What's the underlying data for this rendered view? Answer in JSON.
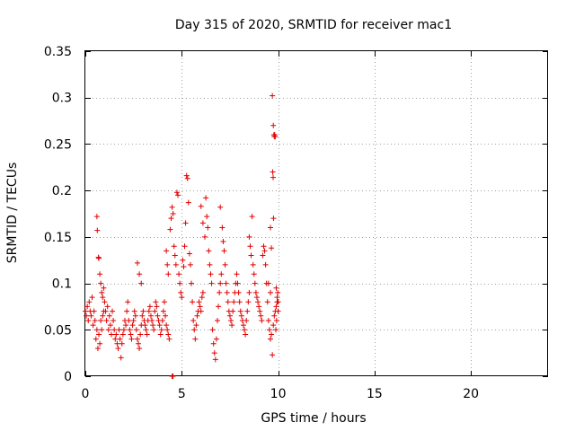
{
  "chart_data": {
    "type": "scatter",
    "title": "Day 315 of 2020, SRMTID for receiver mac1",
    "xlabel": "GPS time / hours",
    "ylabel": "SRMTID / TECUs",
    "xlim": [
      0,
      24
    ],
    "ylim": [
      0,
      0.35
    ],
    "xticks": [
      0,
      5,
      10,
      15,
      20
    ],
    "xtick_labels": [
      "0",
      "5",
      "10",
      "15",
      "20"
    ],
    "yticks": [
      0,
      0.05,
      0.1,
      0.15,
      0.2,
      0.25,
      0.3,
      0.35
    ],
    "ytick_labels": [
      "0",
      "0.05",
      "0.1",
      "0.15",
      "0.2",
      "0.25",
      "0.3",
      "0.35"
    ],
    "grid": true,
    "marker": "+",
    "color": "#e00000",
    "series": [
      {
        "name": "SRMTID",
        "points": [
          [
            0.0,
            0.07
          ],
          [
            0.05,
            0.065
          ],
          [
            0.1,
            0.075
          ],
          [
            0.15,
            0.06
          ],
          [
            0.2,
            0.08
          ],
          [
            0.25,
            0.07
          ],
          [
            0.3,
            0.065
          ],
          [
            0.35,
            0.085
          ],
          [
            0.4,
            0.055
          ],
          [
            0.45,
            0.07
          ],
          [
            0.5,
            0.06
          ],
          [
            0.55,
            0.04
          ],
          [
            0.6,
            0.05
          ],
          [
            0.65,
            0.03
          ],
          [
            0.7,
            0.045
          ],
          [
            0.75,
            0.035
          ],
          [
            0.8,
            0.06
          ],
          [
            0.85,
            0.05
          ],
          [
            0.9,
            0.065
          ],
          [
            0.95,
            0.07
          ],
          [
            0.6,
            0.172
          ],
          [
            0.62,
            0.157
          ],
          [
            0.68,
            0.128
          ],
          [
            0.7,
            0.127
          ],
          [
            0.75,
            0.11
          ],
          [
            0.8,
            0.1
          ],
          [
            0.85,
            0.09
          ],
          [
            0.9,
            0.085
          ],
          [
            0.95,
            0.095
          ],
          [
            1.0,
            0.08
          ],
          [
            1.05,
            0.07
          ],
          [
            1.1,
            0.06
          ],
          [
            1.15,
            0.075
          ],
          [
            1.2,
            0.05
          ],
          [
            1.25,
            0.065
          ],
          [
            1.3,
            0.055
          ],
          [
            1.35,
            0.045
          ],
          [
            1.4,
            0.07
          ],
          [
            1.45,
            0.06
          ],
          [
            1.5,
            0.05
          ],
          [
            1.55,
            0.04
          ],
          [
            1.6,
            0.045
          ],
          [
            1.65,
            0.035
          ],
          [
            1.7,
            0.03
          ],
          [
            1.75,
            0.05
          ],
          [
            1.8,
            0.04
          ],
          [
            1.85,
            0.02
          ],
          [
            1.9,
            0.035
          ],
          [
            1.95,
            0.045
          ],
          [
            2.0,
            0.05
          ],
          [
            2.05,
            0.06
          ],
          [
            2.1,
            0.055
          ],
          [
            2.15,
            0.07
          ],
          [
            2.2,
            0.08
          ],
          [
            2.25,
            0.06
          ],
          [
            2.3,
            0.05
          ],
          [
            2.35,
            0.045
          ],
          [
            2.4,
            0.04
          ],
          [
            2.45,
            0.055
          ],
          [
            2.5,
            0.06
          ],
          [
            2.55,
            0.07
          ],
          [
            2.6,
            0.065
          ],
          [
            2.65,
            0.05
          ],
          [
            2.7,
            0.04
          ],
          [
            2.75,
            0.035
          ],
          [
            2.8,
            0.03
          ],
          [
            2.85,
            0.045
          ],
          [
            2.9,
            0.055
          ],
          [
            2.95,
            0.065
          ],
          [
            3.0,
            0.07
          ],
          [
            2.7,
            0.122
          ],
          [
            2.8,
            0.11
          ],
          [
            2.9,
            0.1
          ],
          [
            3.05,
            0.06
          ],
          [
            3.1,
            0.055
          ],
          [
            3.15,
            0.05
          ],
          [
            3.2,
            0.045
          ],
          [
            3.25,
            0.06
          ],
          [
            3.3,
            0.07
          ],
          [
            3.35,
            0.075
          ],
          [
            3.4,
            0.065
          ],
          [
            3.45,
            0.06
          ],
          [
            3.5,
            0.055
          ],
          [
            3.55,
            0.05
          ],
          [
            3.6,
            0.07
          ],
          [
            3.65,
            0.08
          ],
          [
            3.7,
            0.075
          ],
          [
            3.75,
            0.065
          ],
          [
            3.8,
            0.06
          ],
          [
            3.85,
            0.055
          ],
          [
            3.9,
            0.045
          ],
          [
            3.95,
            0.05
          ],
          [
            4.0,
            0.06
          ],
          [
            4.05,
            0.07
          ],
          [
            4.1,
            0.08
          ],
          [
            4.15,
            0.065
          ],
          [
            4.2,
            0.055
          ],
          [
            4.25,
            0.05
          ],
          [
            4.3,
            0.045
          ],
          [
            4.35,
            0.04
          ],
          [
            4.2,
            0.135
          ],
          [
            4.25,
            0.12
          ],
          [
            4.3,
            0.11
          ],
          [
            4.4,
            0.158
          ],
          [
            4.45,
            0.17
          ],
          [
            4.5,
            0.182
          ],
          [
            4.55,
            0.175
          ],
          [
            4.6,
            0.14
          ],
          [
            4.65,
            0.13
          ],
          [
            4.7,
            0.12
          ],
          [
            4.5,
            0.0
          ],
          [
            4.55,
            0.0
          ],
          [
            4.75,
            0.198
          ],
          [
            4.8,
            0.195
          ],
          [
            4.85,
            0.11
          ],
          [
            4.9,
            0.1
          ],
          [
            4.95,
            0.09
          ],
          [
            5.0,
            0.085
          ],
          [
            5.05,
            0.125
          ],
          [
            5.1,
            0.118
          ],
          [
            5.15,
            0.14
          ],
          [
            5.2,
            0.165
          ],
          [
            5.25,
            0.216
          ],
          [
            5.3,
            0.213
          ],
          [
            5.35,
            0.187
          ],
          [
            5.4,
            0.132
          ],
          [
            5.45,
            0.12
          ],
          [
            5.5,
            0.1
          ],
          [
            5.55,
            0.08
          ],
          [
            5.6,
            0.06
          ],
          [
            5.65,
            0.05
          ],
          [
            5.7,
            0.04
          ],
          [
            5.75,
            0.055
          ],
          [
            5.8,
            0.065
          ],
          [
            5.85,
            0.07
          ],
          [
            5.9,
            0.08
          ],
          [
            5.95,
            0.075
          ],
          [
            6.0,
            0.07
          ],
          [
            6.05,
            0.085
          ],
          [
            6.1,
            0.09
          ],
          [
            6.0,
            0.183
          ],
          [
            6.1,
            0.165
          ],
          [
            6.2,
            0.15
          ],
          [
            6.25,
            0.192
          ],
          [
            6.3,
            0.172
          ],
          [
            6.35,
            0.16
          ],
          [
            6.4,
            0.135
          ],
          [
            6.45,
            0.12
          ],
          [
            6.5,
            0.11
          ],
          [
            6.55,
            0.1
          ],
          [
            6.6,
            0.05
          ],
          [
            6.65,
            0.035
          ],
          [
            6.7,
            0.025
          ],
          [
            6.75,
            0.018
          ],
          [
            6.8,
            0.04
          ],
          [
            6.85,
            0.06
          ],
          [
            6.9,
            0.075
          ],
          [
            6.95,
            0.09
          ],
          [
            7.0,
            0.1
          ],
          [
            7.05,
            0.11
          ],
          [
            7.0,
            0.182
          ],
          [
            7.1,
            0.16
          ],
          [
            7.15,
            0.145
          ],
          [
            7.2,
            0.135
          ],
          [
            7.25,
            0.12
          ],
          [
            7.3,
            0.1
          ],
          [
            7.35,
            0.09
          ],
          [
            7.4,
            0.08
          ],
          [
            7.45,
            0.07
          ],
          [
            7.5,
            0.065
          ],
          [
            7.55,
            0.06
          ],
          [
            7.6,
            0.055
          ],
          [
            7.65,
            0.07
          ],
          [
            7.7,
            0.08
          ],
          [
            7.75,
            0.09
          ],
          [
            7.8,
            0.1
          ],
          [
            7.85,
            0.11
          ],
          [
            7.9,
            0.1
          ],
          [
            7.95,
            0.09
          ],
          [
            8.0,
            0.08
          ],
          [
            8.05,
            0.07
          ],
          [
            8.1,
            0.065
          ],
          [
            8.15,
            0.06
          ],
          [
            8.2,
            0.055
          ],
          [
            8.25,
            0.05
          ],
          [
            8.3,
            0.045
          ],
          [
            8.35,
            0.06
          ],
          [
            8.4,
            0.07
          ],
          [
            8.45,
            0.08
          ],
          [
            8.5,
            0.09
          ],
          [
            8.5,
            0.15
          ],
          [
            8.55,
            0.14
          ],
          [
            8.6,
            0.13
          ],
          [
            8.65,
            0.172
          ],
          [
            8.7,
            0.12
          ],
          [
            8.75,
            0.11
          ],
          [
            8.8,
            0.1
          ],
          [
            8.85,
            0.09
          ],
          [
            8.9,
            0.085
          ],
          [
            8.95,
            0.08
          ],
          [
            9.0,
            0.075
          ],
          [
            9.05,
            0.07
          ],
          [
            9.1,
            0.065
          ],
          [
            9.15,
            0.06
          ],
          [
            9.2,
            0.13
          ],
          [
            9.25,
            0.14
          ],
          [
            9.3,
            0.135
          ],
          [
            9.35,
            0.12
          ],
          [
            9.4,
            0.1
          ],
          [
            9.45,
            0.08
          ],
          [
            9.5,
            0.06
          ],
          [
            9.55,
            0.05
          ],
          [
            9.6,
            0.04
          ],
          [
            9.65,
            0.045
          ],
          [
            9.7,
            0.023
          ],
          [
            9.75,
            0.055
          ],
          [
            9.8,
            0.065
          ],
          [
            9.85,
            0.07
          ],
          [
            9.9,
            0.075
          ],
          [
            9.95,
            0.08
          ],
          [
            9.7,
            0.302
          ],
          [
            9.75,
            0.27
          ],
          [
            9.78,
            0.26
          ],
          [
            9.8,
            0.258
          ],
          [
            9.82,
            0.26
          ],
          [
            9.85,
            0.258
          ],
          [
            9.72,
            0.22
          ],
          [
            9.74,
            0.214
          ],
          [
            9.76,
            0.17
          ],
          [
            9.6,
            0.16
          ],
          [
            9.65,
            0.138
          ],
          [
            9.9,
            0.095
          ],
          [
            9.95,
            0.085
          ],
          [
            10.0,
            0.07
          ],
          [
            10.0,
            0.08
          ],
          [
            9.98,
            0.09
          ],
          [
            9.92,
            0.06
          ],
          [
            9.88,
            0.05
          ],
          [
            9.6,
            0.09
          ],
          [
            9.5,
            0.1
          ]
        ]
      }
    ]
  }
}
